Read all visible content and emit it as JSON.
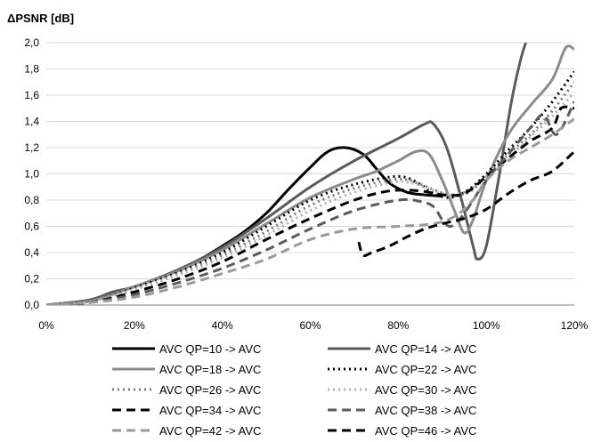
{
  "chart_data": {
    "type": "line",
    "title": "",
    "xlabel": "",
    "ylabel": "ΔPSNR [dB]",
    "xlim": [
      0,
      120
    ],
    "ylim": [
      0,
      2.0
    ],
    "x_ticks": [
      "0%",
      "20%",
      "40%",
      "60%",
      "80%",
      "100%",
      "120%"
    ],
    "y_ticks": [
      "0,0",
      "0,2",
      "0,4",
      "0,6",
      "0,8",
      "1,0",
      "1,2",
      "1,4",
      "1,6",
      "1,8",
      "2,0"
    ],
    "grid": "horizontal",
    "legend_position": "bottom",
    "series": [
      {
        "name": "AVC QP=10 -> AVC",
        "color": "#000000",
        "dash": "solid",
        "width": 3,
        "points": [
          [
            0,
            0
          ],
          [
            5,
            0.01
          ],
          [
            10,
            0.04
          ],
          [
            15,
            0.09
          ],
          [
            20,
            0.14
          ],
          [
            25,
            0.2
          ],
          [
            30,
            0.27
          ],
          [
            35,
            0.35
          ],
          [
            40,
            0.45
          ],
          [
            45,
            0.56
          ],
          [
            50,
            0.7
          ],
          [
            55,
            0.88
          ],
          [
            60,
            1.05
          ],
          [
            64,
            1.17
          ],
          [
            68,
            1.2
          ],
          [
            72,
            1.15
          ],
          [
            75,
            1.04
          ],
          [
            78,
            0.93
          ],
          [
            82,
            0.86
          ],
          [
            86,
            0.84
          ],
          [
            90,
            0.83
          ]
        ]
      },
      {
        "name": "AVC QP=14 -> AVC",
        "color": "#5a5a5a",
        "dash": "solid",
        "width": 3,
        "points": [
          [
            0,
            0
          ],
          [
            10,
            0.04
          ],
          [
            15,
            0.1
          ],
          [
            20,
            0.14
          ],
          [
            30,
            0.27
          ],
          [
            40,
            0.44
          ],
          [
            50,
            0.66
          ],
          [
            60,
            0.9
          ],
          [
            70,
            1.1
          ],
          [
            80,
            1.27
          ],
          [
            86,
            1.38
          ],
          [
            88,
            1.38
          ],
          [
            91,
            1.2
          ],
          [
            94,
            0.85
          ],
          [
            97,
            0.45
          ],
          [
            98,
            0.35
          ],
          [
            100,
            0.45
          ],
          [
            103,
            1.0
          ],
          [
            106,
            1.6
          ],
          [
            109,
            2.0
          ],
          [
            112,
            2.1
          ]
        ]
      },
      {
        "name": "AVC QP=18 -> AVC",
        "color": "#8c8c8c",
        "dash": "solid",
        "width": 3,
        "points": [
          [
            0,
            0
          ],
          [
            10,
            0.03
          ],
          [
            20,
            0.14
          ],
          [
            30,
            0.26
          ],
          [
            40,
            0.42
          ],
          [
            50,
            0.62
          ],
          [
            60,
            0.82
          ],
          [
            70,
            0.96
          ],
          [
            75,
            1.02
          ],
          [
            80,
            1.1
          ],
          [
            84,
            1.17
          ],
          [
            87,
            1.15
          ],
          [
            90,
            0.95
          ],
          [
            93,
            0.7
          ],
          [
            95,
            0.55
          ],
          [
            97,
            0.65
          ],
          [
            100,
            0.95
          ],
          [
            105,
            1.3
          ],
          [
            110,
            1.52
          ],
          [
            115,
            1.72
          ],
          [
            118,
            1.96
          ],
          [
            120,
            1.95
          ]
        ]
      },
      {
        "name": "AVC QP=22 -> AVC",
        "color": "#000000",
        "dash": "dot",
        "width": 3,
        "points": [
          [
            0,
            0
          ],
          [
            10,
            0.03
          ],
          [
            20,
            0.13
          ],
          [
            30,
            0.25
          ],
          [
            40,
            0.4
          ],
          [
            50,
            0.6
          ],
          [
            60,
            0.8
          ],
          [
            70,
            0.92
          ],
          [
            80,
            0.98
          ],
          [
            85,
            0.92
          ],
          [
            88,
            0.85
          ],
          [
            92,
            0.82
          ],
          [
            96,
            0.88
          ],
          [
            100,
            1.0
          ],
          [
            105,
            1.18
          ],
          [
            110,
            1.35
          ],
          [
            115,
            1.55
          ],
          [
            120,
            1.78
          ]
        ]
      },
      {
        "name": "AVC QP=26 -> AVC",
        "color": "#7a7a7a",
        "dash": "dot",
        "width": 3,
        "points": [
          [
            0,
            0
          ],
          [
            10,
            0.03
          ],
          [
            20,
            0.12
          ],
          [
            30,
            0.24
          ],
          [
            40,
            0.38
          ],
          [
            50,
            0.56
          ],
          [
            60,
            0.76
          ],
          [
            70,
            0.89
          ],
          [
            80,
            0.96
          ],
          [
            85,
            0.92
          ],
          [
            88,
            0.88
          ],
          [
            92,
            0.84
          ],
          [
            96,
            0.86
          ],
          [
            100,
            0.98
          ],
          [
            105,
            1.15
          ],
          [
            110,
            1.3
          ],
          [
            115,
            1.48
          ],
          [
            120,
            1.7
          ]
        ]
      },
      {
        "name": "AVC QP=30 -> AVC",
        "color": "#b0b0b0",
        "dash": "dot",
        "width": 3,
        "points": [
          [
            0,
            0
          ],
          [
            10,
            0.03
          ],
          [
            20,
            0.12
          ],
          [
            30,
            0.23
          ],
          [
            40,
            0.36
          ],
          [
            50,
            0.53
          ],
          [
            60,
            0.72
          ],
          [
            70,
            0.86
          ],
          [
            80,
            0.94
          ],
          [
            86,
            0.9
          ],
          [
            90,
            0.85
          ],
          [
            95,
            0.86
          ],
          [
            100,
            0.98
          ],
          [
            105,
            1.12
          ],
          [
            110,
            1.28
          ],
          [
            115,
            1.44
          ],
          [
            120,
            1.62
          ]
        ]
      },
      {
        "name": "AVC QP=34 -> AVC",
        "color": "#000000",
        "dash": "dash",
        "width": 3,
        "points": [
          [
            0,
            0
          ],
          [
            10,
            0.02
          ],
          [
            20,
            0.1
          ],
          [
            30,
            0.2
          ],
          [
            40,
            0.33
          ],
          [
            50,
            0.5
          ],
          [
            60,
            0.66
          ],
          [
            70,
            0.8
          ],
          [
            78,
            0.87
          ],
          [
            85,
            0.87
          ],
          [
            90,
            0.84
          ],
          [
            95,
            0.85
          ],
          [
            100,
            0.98
          ],
          [
            105,
            1.12
          ],
          [
            110,
            1.25
          ],
          [
            115,
            1.35
          ],
          [
            117,
            1.5
          ],
          [
            120,
            1.5
          ]
        ]
      },
      {
        "name": "AVC QP=38 -> AVC",
        "color": "#5a5a5a",
        "dash": "dash",
        "width": 3,
        "points": [
          [
            0,
            0
          ],
          [
            10,
            0.02
          ],
          [
            20,
            0.08
          ],
          [
            30,
            0.17
          ],
          [
            40,
            0.28
          ],
          [
            50,
            0.42
          ],
          [
            60,
            0.58
          ],
          [
            70,
            0.72
          ],
          [
            80,
            0.8
          ],
          [
            85,
            0.79
          ],
          [
            88,
            0.75
          ],
          [
            90,
            0.65
          ],
          [
            92,
            0.6
          ],
          [
            95,
            0.7
          ],
          [
            100,
            0.95
          ],
          [
            105,
            1.15
          ],
          [
            110,
            1.35
          ],
          [
            113,
            1.45
          ],
          [
            116,
            1.3
          ],
          [
            120,
            1.55
          ]
        ]
      },
      {
        "name": "AVC QP=42 -> AVC",
        "color": "#9a9a9a",
        "dash": "dash",
        "width": 3,
        "points": [
          [
            0,
            0
          ],
          [
            10,
            0.02
          ],
          [
            20,
            0.06
          ],
          [
            30,
            0.14
          ],
          [
            40,
            0.24
          ],
          [
            50,
            0.35
          ],
          [
            60,
            0.5
          ],
          [
            70,
            0.58
          ],
          [
            80,
            0.6
          ],
          [
            88,
            0.62
          ],
          [
            93,
            0.68
          ],
          [
            97,
            0.8
          ],
          [
            100,
            0.95
          ],
          [
            105,
            1.1
          ],
          [
            110,
            1.2
          ],
          [
            115,
            1.3
          ],
          [
            120,
            1.42
          ]
        ]
      },
      {
        "name": "AVC QP=46 -> AVC",
        "color": "#000000",
        "dash": "dash",
        "width": 3,
        "points": [
          [
            71,
            0.48
          ],
          [
            72,
            0.38
          ],
          [
            74,
            0.4
          ],
          [
            78,
            0.45
          ],
          [
            82,
            0.52
          ],
          [
            86,
            0.58
          ],
          [
            90,
            0.62
          ],
          [
            95,
            0.66
          ],
          [
            100,
            0.73
          ],
          [
            105,
            0.85
          ],
          [
            110,
            0.95
          ],
          [
            115,
            1.02
          ],
          [
            120,
            1.17
          ]
        ]
      }
    ]
  }
}
